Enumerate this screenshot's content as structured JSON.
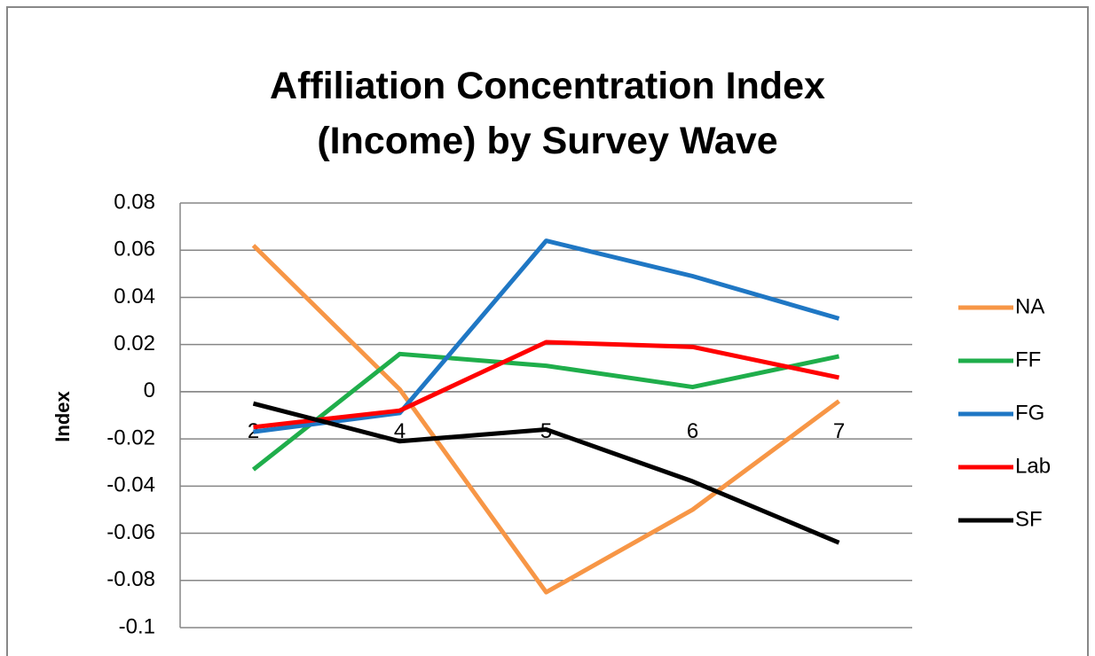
{
  "chart_data": {
    "type": "line",
    "title": "Affiliation Concentration Index (Income) by Survey Wave",
    "y_label": "Index",
    "categories": [
      "2",
      "4",
      "5",
      "6",
      "7"
    ],
    "series": [
      {
        "name": "NA",
        "color": "#f79646",
        "values": [
          0.062,
          0.001,
          -0.085,
          -0.05,
          -0.004
        ]
      },
      {
        "name": "FF",
        "color": "#1fae4b",
        "values": [
          -0.033,
          0.016,
          0.011,
          0.002,
          0.015
        ]
      },
      {
        "name": "FG",
        "color": "#1f77c4",
        "values": [
          -0.017,
          -0.009,
          0.064,
          0.049,
          0.031
        ]
      },
      {
        "name": "Lab",
        "color": "#ff0000",
        "values": [
          -0.015,
          -0.008,
          0.021,
          0.019,
          0.006
        ]
      },
      {
        "name": "SF",
        "color": "#000000",
        "values": [
          -0.005,
          -0.021,
          -0.016,
          -0.038,
          -0.064
        ]
      }
    ],
    "ylim": [
      -0.1,
      0.08
    ],
    "yticks": [
      -0.1,
      -0.08,
      -0.06,
      -0.04,
      -0.02,
      0,
      0.02,
      0.04,
      0.06,
      0.08
    ],
    "grid": true,
    "legend": "right"
  }
}
